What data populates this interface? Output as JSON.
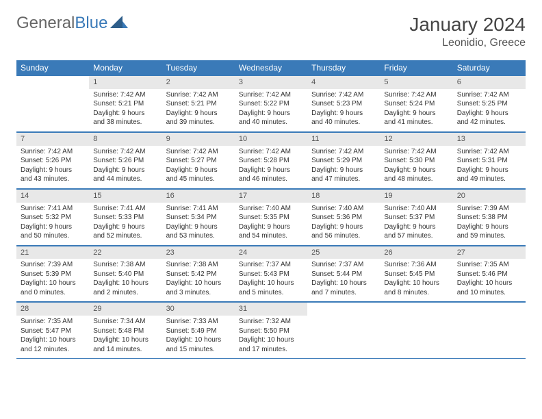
{
  "logo": {
    "part1": "General",
    "part2": "Blue"
  },
  "title": "January 2024",
  "location": "Leonidio, Greece",
  "header_bg": "#3a7ab8",
  "header_fg": "#ffffff",
  "daynum_bg": "#e8e8e8",
  "border_color": "#3a7ab8",
  "font_family": "Arial, Helvetica, sans-serif",
  "title_fontsize": 28,
  "location_fontsize": 16,
  "th_fontsize": 12,
  "cell_fontsize": 10,
  "weekdays": [
    "Sunday",
    "Monday",
    "Tuesday",
    "Wednesday",
    "Thursday",
    "Friday",
    "Saturday"
  ],
  "weeks": [
    [
      null,
      {
        "n": "1",
        "sr": "Sunrise: 7:42 AM",
        "ss": "Sunset: 5:21 PM",
        "d1": "Daylight: 9 hours",
        "d2": "and 38 minutes."
      },
      {
        "n": "2",
        "sr": "Sunrise: 7:42 AM",
        "ss": "Sunset: 5:21 PM",
        "d1": "Daylight: 9 hours",
        "d2": "and 39 minutes."
      },
      {
        "n": "3",
        "sr": "Sunrise: 7:42 AM",
        "ss": "Sunset: 5:22 PM",
        "d1": "Daylight: 9 hours",
        "d2": "and 40 minutes."
      },
      {
        "n": "4",
        "sr": "Sunrise: 7:42 AM",
        "ss": "Sunset: 5:23 PM",
        "d1": "Daylight: 9 hours",
        "d2": "and 40 minutes."
      },
      {
        "n": "5",
        "sr": "Sunrise: 7:42 AM",
        "ss": "Sunset: 5:24 PM",
        "d1": "Daylight: 9 hours",
        "d2": "and 41 minutes."
      },
      {
        "n": "6",
        "sr": "Sunrise: 7:42 AM",
        "ss": "Sunset: 5:25 PM",
        "d1": "Daylight: 9 hours",
        "d2": "and 42 minutes."
      }
    ],
    [
      {
        "n": "7",
        "sr": "Sunrise: 7:42 AM",
        "ss": "Sunset: 5:26 PM",
        "d1": "Daylight: 9 hours",
        "d2": "and 43 minutes."
      },
      {
        "n": "8",
        "sr": "Sunrise: 7:42 AM",
        "ss": "Sunset: 5:26 PM",
        "d1": "Daylight: 9 hours",
        "d2": "and 44 minutes."
      },
      {
        "n": "9",
        "sr": "Sunrise: 7:42 AM",
        "ss": "Sunset: 5:27 PM",
        "d1": "Daylight: 9 hours",
        "d2": "and 45 minutes."
      },
      {
        "n": "10",
        "sr": "Sunrise: 7:42 AM",
        "ss": "Sunset: 5:28 PM",
        "d1": "Daylight: 9 hours",
        "d2": "and 46 minutes."
      },
      {
        "n": "11",
        "sr": "Sunrise: 7:42 AM",
        "ss": "Sunset: 5:29 PM",
        "d1": "Daylight: 9 hours",
        "d2": "and 47 minutes."
      },
      {
        "n": "12",
        "sr": "Sunrise: 7:42 AM",
        "ss": "Sunset: 5:30 PM",
        "d1": "Daylight: 9 hours",
        "d2": "and 48 minutes."
      },
      {
        "n": "13",
        "sr": "Sunrise: 7:42 AM",
        "ss": "Sunset: 5:31 PM",
        "d1": "Daylight: 9 hours",
        "d2": "and 49 minutes."
      }
    ],
    [
      {
        "n": "14",
        "sr": "Sunrise: 7:41 AM",
        "ss": "Sunset: 5:32 PM",
        "d1": "Daylight: 9 hours",
        "d2": "and 50 minutes."
      },
      {
        "n": "15",
        "sr": "Sunrise: 7:41 AM",
        "ss": "Sunset: 5:33 PM",
        "d1": "Daylight: 9 hours",
        "d2": "and 52 minutes."
      },
      {
        "n": "16",
        "sr": "Sunrise: 7:41 AM",
        "ss": "Sunset: 5:34 PM",
        "d1": "Daylight: 9 hours",
        "d2": "and 53 minutes."
      },
      {
        "n": "17",
        "sr": "Sunrise: 7:40 AM",
        "ss": "Sunset: 5:35 PM",
        "d1": "Daylight: 9 hours",
        "d2": "and 54 minutes."
      },
      {
        "n": "18",
        "sr": "Sunrise: 7:40 AM",
        "ss": "Sunset: 5:36 PM",
        "d1": "Daylight: 9 hours",
        "d2": "and 56 minutes."
      },
      {
        "n": "19",
        "sr": "Sunrise: 7:40 AM",
        "ss": "Sunset: 5:37 PM",
        "d1": "Daylight: 9 hours",
        "d2": "and 57 minutes."
      },
      {
        "n": "20",
        "sr": "Sunrise: 7:39 AM",
        "ss": "Sunset: 5:38 PM",
        "d1": "Daylight: 9 hours",
        "d2": "and 59 minutes."
      }
    ],
    [
      {
        "n": "21",
        "sr": "Sunrise: 7:39 AM",
        "ss": "Sunset: 5:39 PM",
        "d1": "Daylight: 10 hours",
        "d2": "and 0 minutes."
      },
      {
        "n": "22",
        "sr": "Sunrise: 7:38 AM",
        "ss": "Sunset: 5:40 PM",
        "d1": "Daylight: 10 hours",
        "d2": "and 2 minutes."
      },
      {
        "n": "23",
        "sr": "Sunrise: 7:38 AM",
        "ss": "Sunset: 5:42 PM",
        "d1": "Daylight: 10 hours",
        "d2": "and 3 minutes."
      },
      {
        "n": "24",
        "sr": "Sunrise: 7:37 AM",
        "ss": "Sunset: 5:43 PM",
        "d1": "Daylight: 10 hours",
        "d2": "and 5 minutes."
      },
      {
        "n": "25",
        "sr": "Sunrise: 7:37 AM",
        "ss": "Sunset: 5:44 PM",
        "d1": "Daylight: 10 hours",
        "d2": "and 7 minutes."
      },
      {
        "n": "26",
        "sr": "Sunrise: 7:36 AM",
        "ss": "Sunset: 5:45 PM",
        "d1": "Daylight: 10 hours",
        "d2": "and 8 minutes."
      },
      {
        "n": "27",
        "sr": "Sunrise: 7:35 AM",
        "ss": "Sunset: 5:46 PM",
        "d1": "Daylight: 10 hours",
        "d2": "and 10 minutes."
      }
    ],
    [
      {
        "n": "28",
        "sr": "Sunrise: 7:35 AM",
        "ss": "Sunset: 5:47 PM",
        "d1": "Daylight: 10 hours",
        "d2": "and 12 minutes."
      },
      {
        "n": "29",
        "sr": "Sunrise: 7:34 AM",
        "ss": "Sunset: 5:48 PM",
        "d1": "Daylight: 10 hours",
        "d2": "and 14 minutes."
      },
      {
        "n": "30",
        "sr": "Sunrise: 7:33 AM",
        "ss": "Sunset: 5:49 PM",
        "d1": "Daylight: 10 hours",
        "d2": "and 15 minutes."
      },
      {
        "n": "31",
        "sr": "Sunrise: 7:32 AM",
        "ss": "Sunset: 5:50 PM",
        "d1": "Daylight: 10 hours",
        "d2": "and 17 minutes."
      },
      null,
      null,
      null
    ]
  ]
}
